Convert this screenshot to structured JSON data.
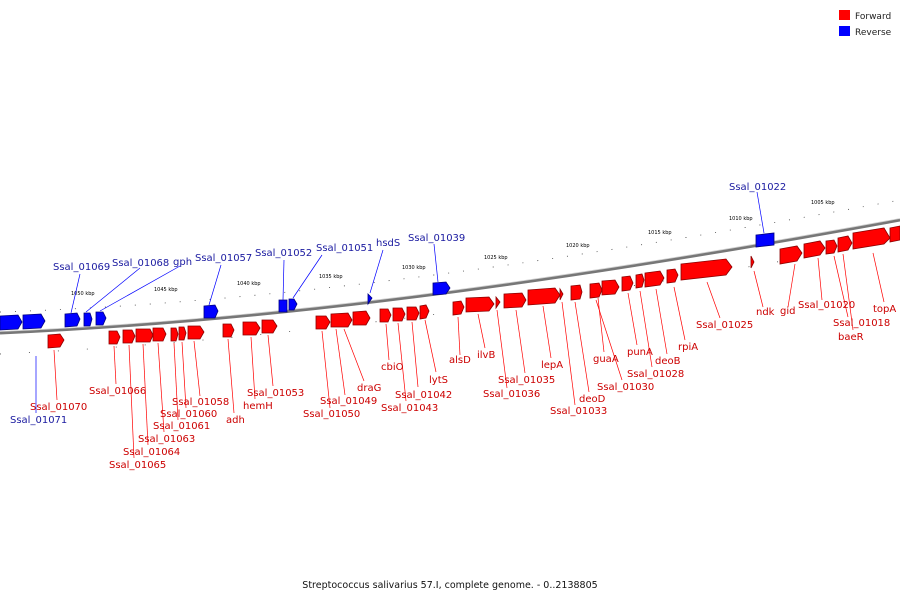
{
  "legend": [
    {
      "label": "Forward",
      "color": "#ff0000"
    },
    {
      "label": "Reverse",
      "color": "#0000ff"
    }
  ],
  "caption": "Streptococcus salivarius 57.I, complete genome. - 0..2138805",
  "colors": {
    "forward": "#ff0000",
    "forward_dark": "#8b0000",
    "reverse": "#0000ff",
    "reverse_dark": "#000080",
    "backbone": "#777777"
  },
  "scale": [
    {
      "label": "1005 kbp"
    },
    {
      "label": "1010 kbp"
    },
    {
      "label": "1015 kbp"
    },
    {
      "label": "1020 kbp"
    },
    {
      "label": "1025 kbp"
    },
    {
      "label": "1030 kbp"
    },
    {
      "label": "1035 kbp"
    },
    {
      "label": "1040 kbp"
    },
    {
      "label": "1045 kbp"
    },
    {
      "label": "1050 kbp"
    }
  ],
  "reverse_genes": [
    {
      "label": "Ssal_01022"
    },
    {
      "label": "Ssal_01039"
    },
    {
      "label": "hsdS"
    },
    {
      "label": "Ssal_01051"
    },
    {
      "label": "Ssal_01052"
    },
    {
      "label": "Ssal_01057"
    },
    {
      "label": "gph"
    },
    {
      "label": "Ssal_01068"
    },
    {
      "label": "Ssal_01069"
    },
    {
      "label": "Ssal_01071"
    }
  ],
  "forward_labels": [
    {
      "label": "topA"
    },
    {
      "label": "baeR"
    },
    {
      "label": "Ssal_01018"
    },
    {
      "label": "Ssal_01020"
    },
    {
      "label": "gid"
    },
    {
      "label": "ndk"
    },
    {
      "label": "Ssal_01025"
    },
    {
      "label": "rpiA"
    },
    {
      "label": "deoB"
    },
    {
      "label": "Ssal_01028"
    },
    {
      "label": "punA"
    },
    {
      "label": "guaA"
    },
    {
      "label": "Ssal_01030"
    },
    {
      "label": "deoD"
    },
    {
      "label": "Ssal_01033"
    },
    {
      "label": "lepA"
    },
    {
      "label": "Ssal_01035"
    },
    {
      "label": "Ssal_01036"
    },
    {
      "label": "ilvB"
    },
    {
      "label": "alsD"
    },
    {
      "label": "lytS"
    },
    {
      "label": "Ssal_01042"
    },
    {
      "label": "Ssal_01043"
    },
    {
      "label": "cbiO"
    },
    {
      "label": "draG"
    },
    {
      "label": "Ssal_01049"
    },
    {
      "label": "Ssal_01050"
    },
    {
      "label": "Ssal_01053"
    },
    {
      "label": "hemH"
    },
    {
      "label": "adh"
    },
    {
      "label": "Ssal_01058"
    },
    {
      "label": "Ssal_01060"
    },
    {
      "label": "Ssal_01061"
    },
    {
      "label": "Ssal_01063"
    },
    {
      "label": "Ssal_01064"
    },
    {
      "label": "Ssal_01065"
    },
    {
      "label": "Ssal_01066"
    },
    {
      "label": "Ssal_01070"
    }
  ]
}
